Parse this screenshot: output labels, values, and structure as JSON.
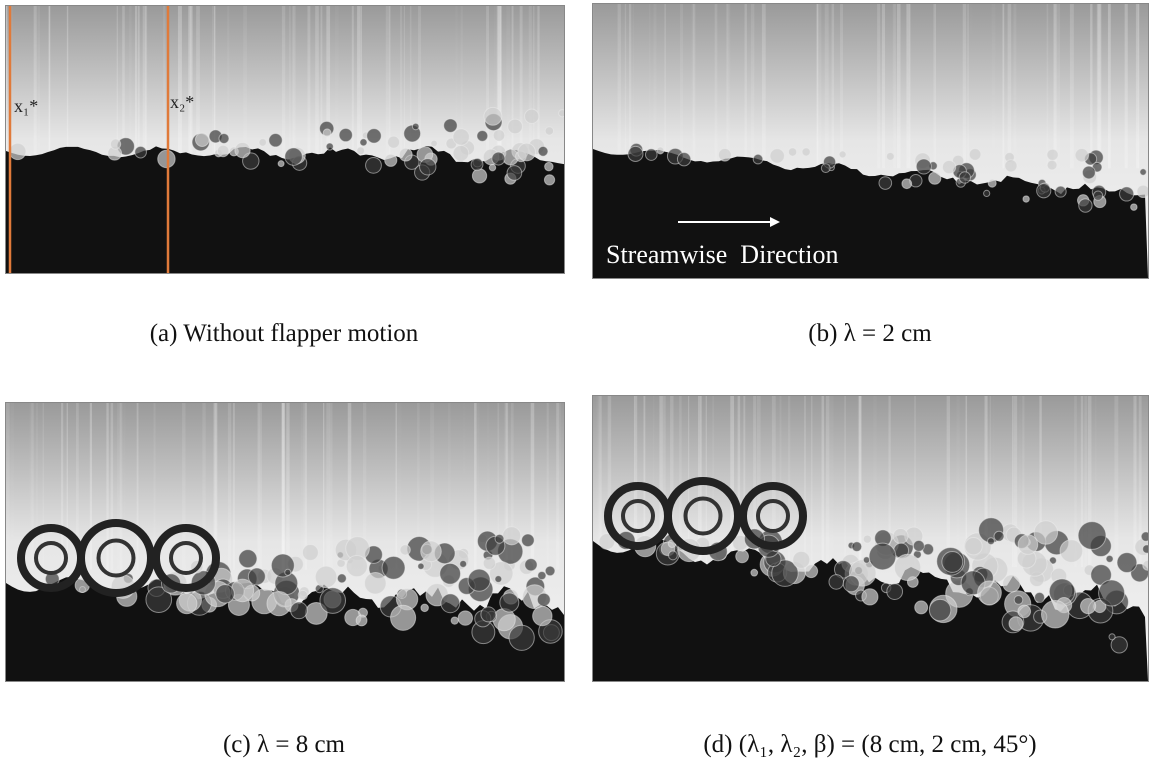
{
  "panels": [
    {
      "caption": "(a) Without flapper motion",
      "labels": [
        "x₁*",
        "x₂*"
      ]
    },
    {
      "caption": "(b) λ = 2 cm",
      "annotation": "Streamwise  Direction"
    },
    {
      "caption": "(c) λ = 8 cm"
    },
    {
      "caption": "(d) (λ₁, λ₂, β) = (8 cm, 2 cm, 45°)"
    }
  ]
}
